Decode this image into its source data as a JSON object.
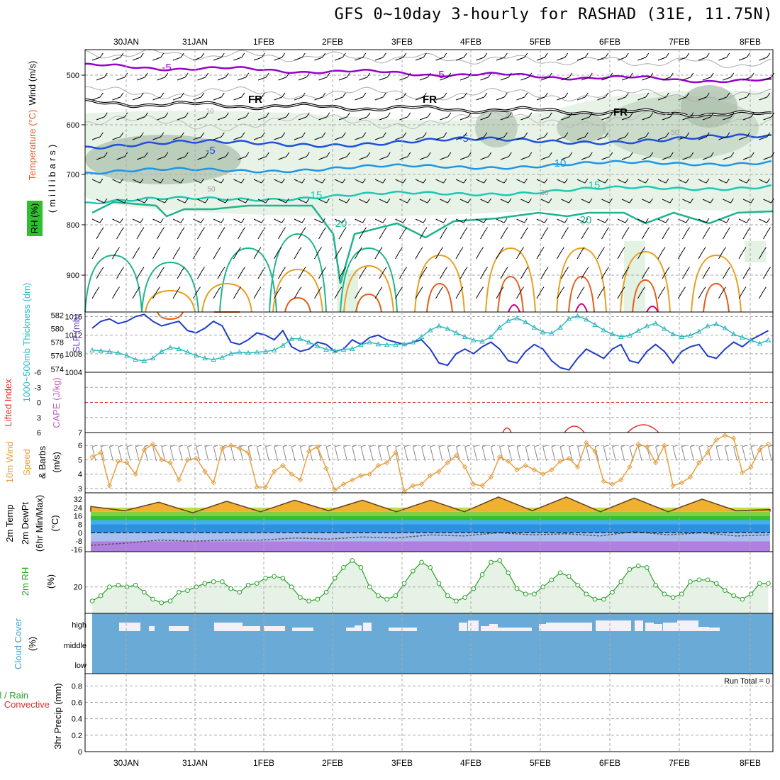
{
  "title": "GFS 0~10day 3-hourly for RASHAD (31E, 11.75N)",
  "dates": [
    "30JAN",
    "31JAN",
    "1FEB",
    "2FEB",
    "3FEB",
    "4FEB",
    "5FEB",
    "6FEB",
    "7FEB",
    "8FEB"
  ],
  "panels": {
    "upper": {
      "ylabel_parts": [
        "Wind (m/s)",
        "Temperature (°C)",
        "(millibars)",
        "RH (%)"
      ],
      "ticks": [
        "500",
        "600",
        "700",
        "800",
        "900"
      ],
      "contour_labels": [
        "-5",
        "-5",
        "FR",
        "FR",
        "FR",
        "-5",
        "-5",
        "10",
        "15",
        "15",
        "20",
        "20",
        "10",
        "30",
        "50",
        "50",
        "30"
      ]
    },
    "slp": {
      "ylabel_left": "1000~500mb Thickness (dm)",
      "ylabel_right": "SLP (mb)",
      "ticks_left": [
        "582",
        "580",
        "578",
        "576",
        "574"
      ],
      "ticks_right": [
        "1016",
        "1012",
        "1008",
        "1004"
      ]
    },
    "li": {
      "ylabel_left": "Lifted Index",
      "ylabel_right": "CAPE (J/kg)",
      "ticks_left": [
        "-6",
        "-3",
        "0",
        "3",
        "6"
      ],
      "ticks_right": [
        "7"
      ]
    },
    "wind10": {
      "ylabel_parts": [
        "10m Wind",
        "Speed",
        "& Barbs",
        "(m/s)"
      ],
      "ticks": [
        "6",
        "5",
        "4",
        "3"
      ]
    },
    "temp": {
      "ylabel_parts": [
        "2m Temp",
        "2m DewPt",
        "(6hr Min/Max)",
        "(°C)"
      ],
      "ticks": [
        "32",
        "24",
        "16",
        "8",
        "0",
        "-8",
        "-16"
      ]
    },
    "rh": {
      "ylabel_parts": [
        "2m RH",
        "(%)"
      ],
      "ticks": [
        "20"
      ]
    },
    "cloud": {
      "ylabel_parts": [
        "Cloud Cover",
        "(%)"
      ],
      "levels": [
        "high",
        "middle",
        "low"
      ]
    },
    "precip": {
      "ylabel_parts": [
        "Total / Rain",
        "Convective",
        "3hr Precip (mm)"
      ],
      "ticks": [
        "0.8",
        "0.6",
        "0.4",
        "0.2",
        "0"
      ],
      "run_total": "Run Total = 0"
    }
  },
  "colors": {
    "purple": "#9900cc",
    "black": "#000000",
    "blue": "#1e50dc",
    "cyan_blue": "#1e96e6",
    "teal": "#1ec8b4",
    "green": "#1eb48c",
    "orange": "#e6a01e",
    "red_orange": "#e65a14",
    "magenta": "#cc0080",
    "slp": "#1e3cc8",
    "thick": "#30b8c0",
    "wind": "#e6a040",
    "rh": "#28a028",
    "cloud_blue": "#6aaad6"
  },
  "chart_data": [
    {
      "type": "line",
      "title": "1000~500mb Thickness (dm) / SLP (mb)",
      "x": [
        "29JAN12",
        "29JAN15",
        "29JAN18",
        "29JAN21",
        "30JAN00",
        "30JAN03",
        "30JAN06",
        "30JAN09",
        "30JAN12",
        "30JAN15",
        "30JAN18",
        "30JAN21",
        "31JAN00",
        "31JAN03",
        "31JAN06",
        "31JAN09",
        "31JAN12",
        "31JAN15",
        "31JAN18",
        "31JAN21",
        "1FEB00",
        "1FEB03",
        "1FEB06",
        "1FEB09",
        "1FEB12",
        "1FEB15",
        "1FEB18",
        "1FEB21",
        "2FEB00",
        "2FEB03",
        "2FEB06",
        "2FEB09",
        "2FEB12",
        "2FEB15",
        "2FEB18",
        "2FEB21",
        "3FEB00",
        "3FEB03",
        "3FEB06",
        "3FEB09",
        "3FEB12",
        "3FEB15",
        "3FEB18",
        "3FEB21",
        "4FEB00",
        "4FEB03",
        "4FEB06",
        "4FEB09",
        "4FEB12",
        "4FEB15",
        "4FEB18",
        "4FEB21",
        "5FEB00",
        "5FEB03",
        "5FEB06",
        "5FEB09",
        "5FEB12",
        "5FEB15",
        "5FEB18",
        "5FEB21",
        "6FEB00",
        "6FEB03",
        "6FEB06",
        "6FEB09",
        "6FEB12",
        "6FEB15",
        "6FEB18",
        "6FEB21",
        "7FEB00",
        "7FEB03",
        "7FEB06",
        "7FEB09",
        "7FEB12",
        "7FEB15",
        "7FEB18",
        "7FEB21",
        "8FEB00",
        "8FEB03",
        "8FEB06"
      ],
      "series": [
        {
          "name": "SLP (mb)",
          "axis": "right",
          "values": [
            1013.5,
            1015.0,
            1015.5,
            1014.5,
            1015.0,
            1016.0,
            1016.5,
            1015.0,
            1014.0,
            1014.5,
            1015.0,
            1013.0,
            1012.5,
            1013.5,
            1015.0,
            1014.0,
            1010.5,
            1010.0,
            1011.0,
            1012.5,
            1012.0,
            1011.0,
            1013.0,
            1009.5,
            1008.5,
            1009.0,
            1010.5,
            1010.0,
            1008.5,
            1009.0,
            1011.0,
            1010.0,
            1011.5,
            1012.0,
            1011.0,
            1010.5,
            1010.0,
            1010.5,
            1011.0,
            1009.0,
            1006.0,
            1005.5,
            1008.0,
            1009.0,
            1008.0,
            1009.5,
            1010.5,
            1009.0,
            1006.5,
            1006.0,
            1008.5,
            1010.0,
            1009.0,
            1006.5,
            1005.0,
            1004.5,
            1007.0,
            1009.0,
            1008.0,
            1007.0,
            1009.0,
            1010.0,
            1006.5,
            1006.0,
            1008.5,
            1010.0,
            1008.5,
            1006.0,
            1008.5,
            1009.5,
            1010.0,
            1007.5,
            1007.0,
            1009.0,
            1010.5,
            1009.5,
            1011.0,
            1012.0,
            1013.0
          ]
        },
        {
          "name": "1000~500mb Thickness (dm)",
          "axis": "left",
          "values": [
            576.8,
            576.7,
            576.6,
            576.4,
            576.0,
            575.4,
            575.2,
            575.6,
            576.6,
            577.2,
            577.0,
            576.5,
            576.0,
            575.6,
            575.4,
            575.7,
            576.3,
            576.5,
            576.4,
            576.5,
            576.6,
            576.8,
            577.5,
            578.5,
            578.5,
            578.0,
            577.4,
            576.9,
            576.7,
            576.9,
            577.0,
            577.6,
            578.0,
            577.7,
            577.6,
            577.6,
            577.7,
            578.0,
            578.8,
            579.8,
            580.4,
            580.0,
            579.4,
            578.8,
            578.3,
            578.1,
            578.8,
            580.2,
            581.2,
            581.6,
            581.0,
            580.2,
            579.5,
            579.3,
            580.2,
            581.5,
            581.9,
            581.4,
            580.6,
            579.8,
            579.2,
            578.8,
            579.0,
            579.7,
            580.4,
            580.8,
            580.0,
            579.2,
            578.8,
            579.0,
            579.6,
            580.4,
            580.7,
            580.1,
            579.2,
            578.7,
            578.3,
            577.8,
            578.3
          ]
        }
      ],
      "ylim_left": [
        573.5,
        582.5
      ],
      "ylim_right": [
        1004,
        1017
      ]
    },
    {
      "type": "line",
      "title": "10m Wind Speed & Barbs (m/s)",
      "x": [
        "29JAN12",
        "29JAN15",
        "29JAN18",
        "29JAN21",
        "30JAN00",
        "30JAN03",
        "30JAN06",
        "30JAN09",
        "30JAN12",
        "30JAN15",
        "30JAN18",
        "30JAN21",
        "31JAN00",
        "31JAN03",
        "31JAN06",
        "31JAN09",
        "31JAN12",
        "31JAN15",
        "31JAN18",
        "31JAN21",
        "1FEB00",
        "1FEB03",
        "1FEB06",
        "1FEB09",
        "1FEB12",
        "1FEB15",
        "1FEB18",
        "1FEB21",
        "2FEB00",
        "2FEB03",
        "2FEB06",
        "2FEB09",
        "2FEB12",
        "2FEB15",
        "2FEB18",
        "2FEB21",
        "3FEB00",
        "3FEB03",
        "3FEB06",
        "3FEB09",
        "3FEB12",
        "3FEB15",
        "3FEB18",
        "3FEB21",
        "4FEB00",
        "4FEB03",
        "4FEB06",
        "4FEB09",
        "4FEB12",
        "4FEB15",
        "4FEB18",
        "4FEB21",
        "5FEB00",
        "5FEB03",
        "5FEB06",
        "5FEB09",
        "5FEB12",
        "5FEB15",
        "5FEB18",
        "5FEB21",
        "6FEB00",
        "6FEB03",
        "6FEB06",
        "6FEB09",
        "6FEB12",
        "6FEB15",
        "6FEB18",
        "6FEB21",
        "7FEB00",
        "7FEB03",
        "7FEB06",
        "7FEB09",
        "7FEB12",
        "7FEB15",
        "7FEB18",
        "7FEB21",
        "8FEB00",
        "8FEB03",
        "8FEB06"
      ],
      "series": [
        {
          "name": "10m Wind Speed",
          "values": [
            5.2,
            5.5,
            3.2,
            4.9,
            4.8,
            4.0,
            5.7,
            6.1,
            5.0,
            4.8,
            3.6,
            5.0,
            5.1,
            4.2,
            3.4,
            5.8,
            6.0,
            5.8,
            5.5,
            3.1,
            3.1,
            4.2,
            4.6,
            4.0,
            3.6,
            5.6,
            5.9,
            4.4,
            2.9,
            3.3,
            3.6,
            3.9,
            4.0,
            4.6,
            4.8,
            5.5,
            2.8,
            3.2,
            3.3,
            3.9,
            4.2,
            4.8,
            5.3,
            4.5,
            3.3,
            3.2,
            3.8,
            5.2,
            4.9,
            4.3,
            4.6,
            4.3,
            4.0,
            4.3,
            4.9,
            5.1,
            4.5,
            6.2,
            5.6,
            3.5,
            3.3,
            3.6,
            4.5,
            6.1,
            5.9,
            4.8,
            6.0,
            3.2,
            3.4,
            3.8,
            4.8,
            5.5,
            6.4,
            6.7,
            6.5,
            4.1,
            4.5,
            5.7,
            6.1
          ]
        }
      ],
      "ylim": [
        2.7,
        6.9
      ]
    },
    {
      "type": "line",
      "title": "2m RH (%)",
      "x": [
        "29JAN12",
        "29JAN15",
        "29JAN18",
        "29JAN21",
        "30JAN00",
        "30JAN03",
        "30JAN06",
        "30JAN09",
        "30JAN12",
        "30JAN15",
        "30JAN18",
        "30JAN21",
        "31JAN00",
        "31JAN03",
        "31JAN06",
        "31JAN09",
        "31JAN12",
        "31JAN15",
        "31JAN18",
        "31JAN21",
        "1FEB00",
        "1FEB03",
        "1FEB06",
        "1FEB09",
        "1FEB12",
        "1FEB15",
        "1FEB18",
        "1FEB21",
        "2FEB00",
        "2FEB03",
        "2FEB06",
        "2FEB09",
        "2FEB12",
        "2FEB15",
        "2FEB18",
        "2FEB21",
        "3FEB00",
        "3FEB03",
        "3FEB06",
        "3FEB09",
        "3FEB12",
        "3FEB15",
        "3FEB18",
        "3FEB21",
        "4FEB00",
        "4FEB03",
        "4FEB06",
        "4FEB09",
        "4FEB12",
        "4FEB15",
        "4FEB18",
        "4FEB21",
        "5FEB00",
        "5FEB03",
        "5FEB06",
        "5FEB09",
        "5FEB12",
        "5FEB15",
        "5FEB18",
        "5FEB21",
        "6FEB00",
        "6FEB03",
        "6FEB06",
        "6FEB09",
        "6FEB12",
        "6FEB15",
        "6FEB18",
        "6FEB21",
        "7FEB00",
        "7FEB03",
        "7FEB06",
        "7FEB09",
        "7FEB12",
        "7FEB15",
        "7FEB18",
        "7FEB21",
        "8FEB00",
        "8FEB03",
        "8FEB06"
      ],
      "series": [
        {
          "name": "2m RH",
          "values": [
            12,
            15,
            20,
            21,
            20,
            21,
            17,
            13,
            11,
            12,
            17,
            18,
            20,
            22,
            23,
            23,
            19,
            17,
            21,
            22,
            25,
            26,
            25,
            20,
            14,
            12,
            13,
            17,
            25,
            31,
            35,
            31,
            20,
            15,
            13,
            15,
            22,
            29,
            34,
            31,
            22,
            15,
            12,
            14,
            19,
            27,
            34,
            35,
            28,
            19,
            16,
            16,
            20,
            24,
            28,
            26,
            21,
            16,
            13,
            13,
            17,
            23,
            30,
            32,
            31,
            21,
            16,
            14,
            16,
            23,
            24,
            24,
            22,
            18,
            15,
            13,
            16,
            22,
            22
          ]
        }
      ],
      "ylim": [
        5,
        40
      ]
    },
    {
      "type": "area",
      "title": "Cloud Cover (%)",
      "x": [
        "29JAN12",
        "29JAN15",
        "29JAN18",
        "29JAN21",
        "30JAN00",
        "30JAN03",
        "30JAN06",
        "30JAN09",
        "30JAN12",
        "30JAN15",
        "30JAN18",
        "30JAN21",
        "31JAN00",
        "31JAN03",
        "31JAN06",
        "31JAN09",
        "31JAN12",
        "31JAN15",
        "31JAN18",
        "31JAN21",
        "1FEB00",
        "1FEB03",
        "1FEB06",
        "1FEB09",
        "1FEB12",
        "1FEB15",
        "1FEB18",
        "1FEB21",
        "2FEB00",
        "2FEB03",
        "2FEB06",
        "2FEB09",
        "2FEB12",
        "2FEB15",
        "2FEB18",
        "2FEB21",
        "3FEB00",
        "3FEB03",
        "3FEB06",
        "3FEB09",
        "3FEB12",
        "3FEB15",
        "3FEB18",
        "3FEB21",
        "4FEB00",
        "4FEB03",
        "4FEB06",
        "4FEB09",
        "4FEB12",
        "4FEB15",
        "4FEB18",
        "4FEB21",
        "5FEB00",
        "5FEB03",
        "5FEB06",
        "5FEB09",
        "5FEB12",
        "5FEB15",
        "5FEB18",
        "5FEB21",
        "6FEB00",
        "6FEB03",
        "6FEB06",
        "6FEB09",
        "6FEB12",
        "6FEB15",
        "6FEB18",
        "6FEB21",
        "7FEB00",
        "7FEB03",
        "7FEB06",
        "7FEB09",
        "7FEB12",
        "7FEB15",
        "7FEB18",
        "7FEB21",
        "8FEB00",
        "8FEB03",
        "8FEB06"
      ],
      "series": [
        {
          "name": "high",
          "values": [
            0,
            0,
            0,
            0,
            0,
            90,
            70,
            70,
            70,
            70,
            0,
            0,
            0,
            0,
            0,
            0,
            90,
            90,
            0,
            0,
            0,
            70,
            90,
            90,
            80,
            0,
            0,
            0,
            0,
            0,
            0,
            0,
            0,
            0,
            0,
            70,
            0,
            0,
            0,
            0,
            0,
            0,
            0,
            0,
            0,
            70,
            90,
            0,
            0,
            0,
            0,
            0,
            0,
            0,
            0,
            0,
            0,
            0,
            0,
            0,
            0,
            0,
            0,
            0,
            0,
            0,
            0,
            0,
            0,
            0,
            0,
            0,
            0,
            0,
            0,
            0,
            0,
            0,
            0
          ]
        }
      ]
    },
    {
      "type": "area",
      "title": "2m Temp / 2m DewPt (6hr Min/Max) (°C)",
      "x": [
        "29JAN12",
        "30JAN00",
        "30JAN12",
        "31JAN00",
        "31JAN12",
        "1FEB00",
        "1FEB12",
        "2FEB00",
        "2FEB12",
        "3FEB00",
        "3FEB12",
        "4FEB00",
        "4FEB12",
        "5FEB00",
        "5FEB12",
        "6FEB00",
        "6FEB12",
        "7FEB00",
        "7FEB12",
        "8FEB00",
        "8FEB06"
      ],
      "series": [
        {
          "name": "2m Temp",
          "values": [
            25,
            21,
            29,
            19,
            30,
            20,
            31,
            21,
            31,
            20,
            31,
            20,
            34,
            21,
            34,
            20,
            33,
            20,
            32,
            21,
            22
          ]
        },
        {
          "name": "2m DewPt",
          "values": [
            -12,
            -10,
            -7,
            -8,
            -7,
            -7,
            -5,
            -6,
            -4,
            -5,
            -2,
            -3,
            0,
            -2,
            -1,
            -3,
            1,
            -2,
            0,
            -3,
            -2
          ]
        }
      ],
      "ylim": [
        -18,
        38
      ]
    }
  ]
}
